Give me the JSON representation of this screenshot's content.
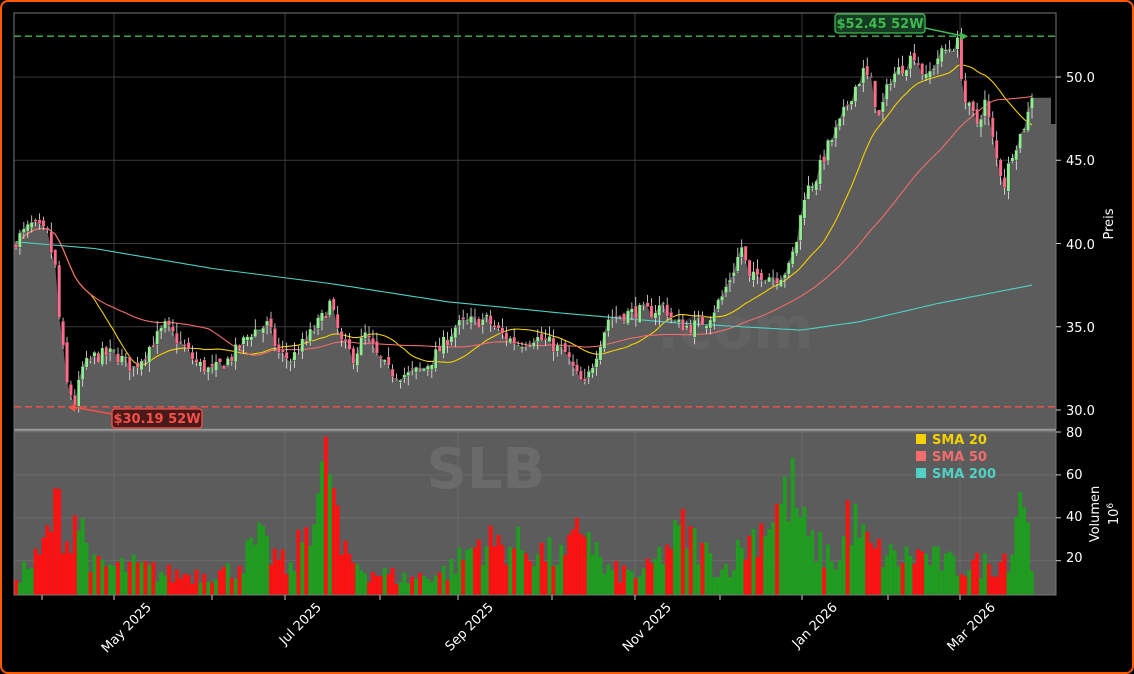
{
  "chart_data": {
    "type": "candlestick",
    "ticker_watermark": "SLB",
    "watermark_site": ".com",
    "x_ticks": [
      "May 2025",
      "Jul 2025",
      "Sep 2025",
      "Nov 2025",
      "Jan 2026",
      "Mar 2026"
    ],
    "price_axis": {
      "label": "Preis",
      "ticks": [
        "30.0",
        "35.0",
        "40.0",
        "45.0",
        "50.0"
      ],
      "ylim": [
        29.5,
        54.0
      ]
    },
    "volume_axis": {
      "label": "Volumen",
      "unit": "10",
      "unit_exp": "6",
      "ticks": [
        "20",
        "40",
        "60",
        "80"
      ],
      "ylim": [
        4,
        80
      ]
    },
    "high_52w": {
      "value": 52.45,
      "label": "$52.45 52W",
      "color": "#3fb950"
    },
    "low_52w": {
      "value": 30.19,
      "label": "$30.19 52W",
      "color": "#f85149"
    },
    "legend": [
      {
        "name": "SMA 20",
        "color": "#f5d000"
      },
      {
        "name": "SMA 50",
        "color": "#f26c6c"
      },
      {
        "name": "SMA 200",
        "color": "#4fd1c5"
      }
    ],
    "colors": {
      "up": "#90ee90",
      "down": "#ff6b8a",
      "vol_up": "#1f9d1f",
      "vol_down": "#ff1111",
      "area": "#5c5c5c"
    },
    "price_anchors": [
      [
        0,
        40.2
      ],
      [
        4,
        41.1
      ],
      [
        8,
        40.5
      ],
      [
        10,
        38.5
      ],
      [
        11,
        35.5
      ],
      [
        13,
        31.5
      ],
      [
        15,
        30.4
      ],
      [
        17,
        32.5
      ],
      [
        20,
        33.2
      ],
      [
        25,
        33.4
      ],
      [
        30,
        32.5
      ],
      [
        34,
        33.8
      ],
      [
        38,
        35.0
      ],
      [
        42,
        34.0
      ],
      [
        46,
        32.8
      ],
      [
        50,
        32.3
      ],
      [
        55,
        33.2
      ],
      [
        60,
        34.7
      ],
      [
        64,
        35.1
      ],
      [
        67,
        33.4
      ],
      [
        70,
        33.0
      ],
      [
        74,
        34.2
      ],
      [
        78,
        35.5
      ],
      [
        80,
        36.4
      ],
      [
        83,
        34.0
      ],
      [
        86,
        33.2
      ],
      [
        89,
        34.5
      ],
      [
        92,
        33.2
      ],
      [
        95,
        32.3
      ],
      [
        100,
        32.1
      ],
      [
        104,
        32.5
      ],
      [
        108,
        33.6
      ],
      [
        112,
        35.0
      ],
      [
        116,
        35.3
      ],
      [
        120,
        35.4
      ],
      [
        124,
        34.5
      ],
      [
        128,
        34.0
      ],
      [
        132,
        34.4
      ],
      [
        136,
        34.0
      ],
      [
        140,
        33.4
      ],
      [
        143,
        32.0
      ],
      [
        145,
        31.4
      ],
      [
        148,
        33.5
      ],
      [
        151,
        35.5
      ],
      [
        154,
        35.7
      ],
      [
        158,
        35.9
      ],
      [
        162,
        35.9
      ],
      [
        165,
        36.3
      ],
      [
        168,
        35.2
      ],
      [
        172,
        35.0
      ],
      [
        176,
        35.4
      ],
      [
        180,
        36.8
      ],
      [
        183,
        38.5
      ],
      [
        185,
        39.8
      ],
      [
        187,
        37.8
      ],
      [
        190,
        38.2
      ],
      [
        194,
        38.0
      ],
      [
        197,
        38.5
      ],
      [
        199,
        40.2
      ],
      [
        201,
        43.0
      ],
      [
        204,
        44.0
      ],
      [
        207,
        45.8
      ],
      [
        210,
        47.2
      ],
      [
        213,
        49.0
      ],
      [
        216,
        50.3
      ],
      [
        218,
        49.6
      ],
      [
        220,
        47.5
      ],
      [
        223,
        50.0
      ],
      [
        226,
        50.6
      ],
      [
        229,
        51.4
      ],
      [
        232,
        49.8
      ],
      [
        235,
        51.2
      ],
      [
        238,
        51.8
      ],
      [
        240,
        52.0
      ],
      [
        242,
        48.5
      ],
      [
        245,
        47.2
      ],
      [
        247,
        48.5
      ],
      [
        250,
        45.0
      ],
      [
        252,
        43.6
      ],
      [
        254,
        45.6
      ],
      [
        256,
        46.5
      ],
      [
        258,
        47.8
      ],
      [
        259,
        49.0
      ]
    ],
    "volume_anchors": [
      [
        0,
        14
      ],
      [
        6,
        22
      ],
      [
        9,
        40
      ],
      [
        11,
        48
      ],
      [
        13,
        30
      ],
      [
        15,
        44
      ],
      [
        17,
        36
      ],
      [
        20,
        18
      ],
      [
        30,
        18
      ],
      [
        40,
        14
      ],
      [
        55,
        16
      ],
      [
        62,
        30
      ],
      [
        70,
        16
      ],
      [
        80,
        70
      ],
      [
        83,
        24
      ],
      [
        90,
        16
      ],
      [
        100,
        12
      ],
      [
        110,
        16
      ],
      [
        118,
        30
      ],
      [
        128,
        28
      ],
      [
        140,
        22
      ],
      [
        145,
        40
      ],
      [
        150,
        16
      ],
      [
        160,
        14
      ],
      [
        170,
        36
      ],
      [
        180,
        16
      ],
      [
        198,
        55
      ],
      [
        202,
        30
      ],
      [
        210,
        20
      ],
      [
        212,
        44
      ],
      [
        218,
        26
      ],
      [
        225,
        22
      ],
      [
        230,
        24
      ],
      [
        240,
        18
      ],
      [
        250,
        20
      ],
      [
        254,
        26
      ],
      [
        256,
        64
      ],
      [
        259,
        20
      ]
    ]
  }
}
